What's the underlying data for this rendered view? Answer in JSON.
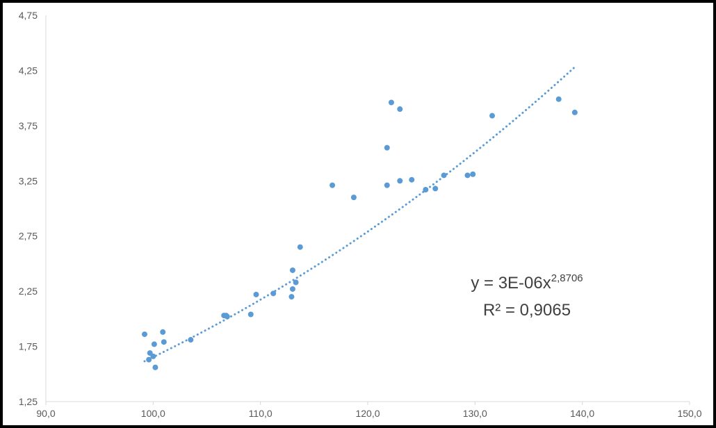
{
  "chart_data": {
    "type": "scatter",
    "title": "",
    "xlabel": "",
    "ylabel": "",
    "xlim": [
      90,
      150
    ],
    "ylim": [
      1.25,
      4.75
    ],
    "x_ticks": [
      "90,0",
      "100,0",
      "110,0",
      "120,0",
      "130,0",
      "140,0",
      "150,0"
    ],
    "y_ticks": [
      "1,25",
      "1,75",
      "2,25",
      "2,75",
      "3,25",
      "3,75",
      "4,25",
      "4,75"
    ],
    "grid": false,
    "legend": "none",
    "marker_color": "#5B9BD5",
    "trendline_color": "#5B9BD5",
    "series": [
      {
        "points": [
          [
            99.2,
            1.86
          ],
          [
            99.6,
            1.63
          ],
          [
            99.7,
            1.69
          ],
          [
            100.0,
            1.66
          ],
          [
            100.1,
            1.77
          ],
          [
            100.2,
            1.56
          ],
          [
            100.9,
            1.88
          ],
          [
            101.0,
            1.79
          ],
          [
            103.5,
            1.81
          ],
          [
            106.6,
            2.03
          ],
          [
            106.9,
            2.02
          ],
          [
            106.8,
            2.03
          ],
          [
            109.1,
            2.04
          ],
          [
            109.6,
            2.22
          ],
          [
            111.2,
            2.23
          ],
          [
            112.9,
            2.2
          ],
          [
            113.0,
            2.27
          ],
          [
            113.0,
            2.44
          ],
          [
            113.3,
            2.33
          ],
          [
            113.7,
            2.65
          ],
          [
            116.7,
            3.21
          ],
          [
            118.7,
            3.1
          ],
          [
            121.8,
            3.55
          ],
          [
            121.8,
            3.21
          ],
          [
            122.2,
            3.96
          ],
          [
            123.0,
            3.9
          ],
          [
            123.0,
            3.25
          ],
          [
            124.1,
            3.26
          ],
          [
            125.4,
            3.17
          ],
          [
            126.3,
            3.18
          ],
          [
            127.1,
            3.3
          ],
          [
            129.3,
            3.3
          ],
          [
            129.8,
            3.31
          ],
          [
            131.6,
            3.84
          ],
          [
            137.8,
            3.99
          ],
          [
            139.3,
            3.87
          ]
        ]
      }
    ],
    "trendline": {
      "type": "power",
      "coefficient": 3e-06,
      "exponent": 2.8706,
      "x_range": [
        99.2,
        139.2
      ]
    },
    "annotation": {
      "equation_main": "y = 3E-06x",
      "equation_exponent": "2,8706",
      "r_squared": "R² = 0,9065"
    }
  }
}
